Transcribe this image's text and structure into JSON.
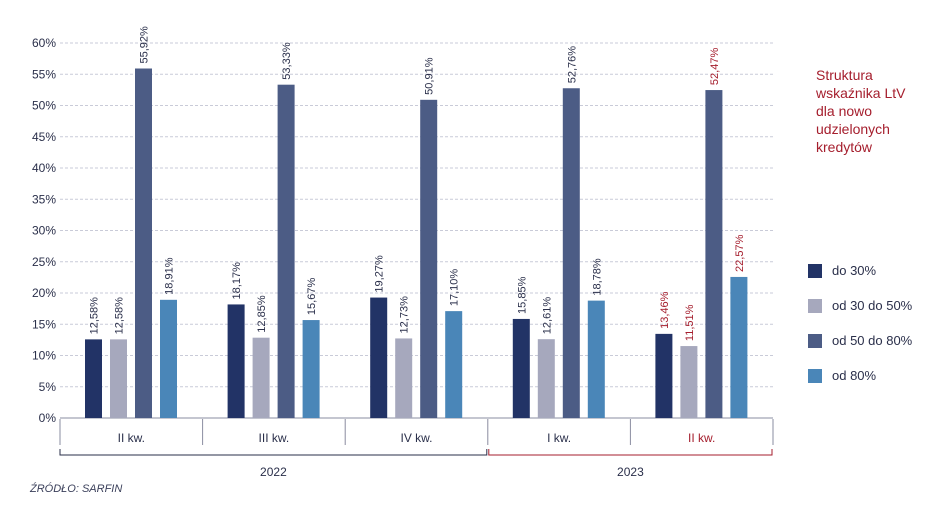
{
  "chart_data": {
    "type": "bar",
    "title": "Struktura\nwskaźnika LtV\ndla nowo\nudzielonych\nkredytów",
    "categories": [
      "II kw.",
      "III kw.",
      "IV kw.",
      "I kw.",
      "II kw."
    ],
    "years": [
      {
        "label": "2022",
        "span": [
          0,
          2
        ],
        "color": "#2a2f4a"
      },
      {
        "label": "2023",
        "span": [
          3,
          4
        ],
        "color": "#a51e2d"
      }
    ],
    "category_label_colors": [
      "#2a2f4a",
      "#2a2f4a",
      "#2a2f4a",
      "#2a2f4a",
      "#a51e2d"
    ],
    "data_label_colors": [
      "#2a2f4a",
      "#2a2f4a",
      "#2a2f4a",
      "#2a2f4a",
      "#a51e2d"
    ],
    "series": [
      {
        "name": "do 30%",
        "color": "#223366",
        "values": [
          12.58,
          18.17,
          19.27,
          15.85,
          13.46
        ],
        "labels": [
          "12,58%",
          "18,17%",
          "19,27%",
          "15,85%",
          "13,46%"
        ]
      },
      {
        "name": "od 30 do 50%",
        "color": "#a6a8bd",
        "values": [
          12.58,
          12.85,
          12.73,
          12.61,
          11.51
        ],
        "labels": [
          "12,58%",
          "12,85%",
          "12,73%",
          "12,61%",
          "11,51%"
        ]
      },
      {
        "name": "od 50 do 80%",
        "color": "#4c5c85",
        "values": [
          55.92,
          53.33,
          50.91,
          52.76,
          52.47
        ],
        "labels": [
          "55,92%",
          "53,33%",
          "50,91%",
          "52,76%",
          "52,47%"
        ]
      },
      {
        "name": "od 80%",
        "color": "#4a86b8",
        "values": [
          18.91,
          15.67,
          17.1,
          18.78,
          22.57
        ],
        "labels": [
          "18,91%",
          "15,67%",
          "17,10%",
          "18,78%",
          "22,57%"
        ]
      }
    ],
    "ylim": [
      0,
      60
    ],
    "yticks": [
      0,
      5,
      10,
      15,
      20,
      25,
      30,
      35,
      40,
      45,
      50,
      55,
      60
    ],
    "ytick_labels": [
      "0%",
      "5%",
      "10%",
      "15%",
      "20%",
      "25%",
      "30%",
      "35%",
      "40%",
      "45%",
      "50%",
      "55%",
      "60%"
    ],
    "grid": true,
    "legend_position": "right",
    "xlabel": "",
    "ylabel": ""
  },
  "source": "ŹRÓDŁO: SARFIN"
}
